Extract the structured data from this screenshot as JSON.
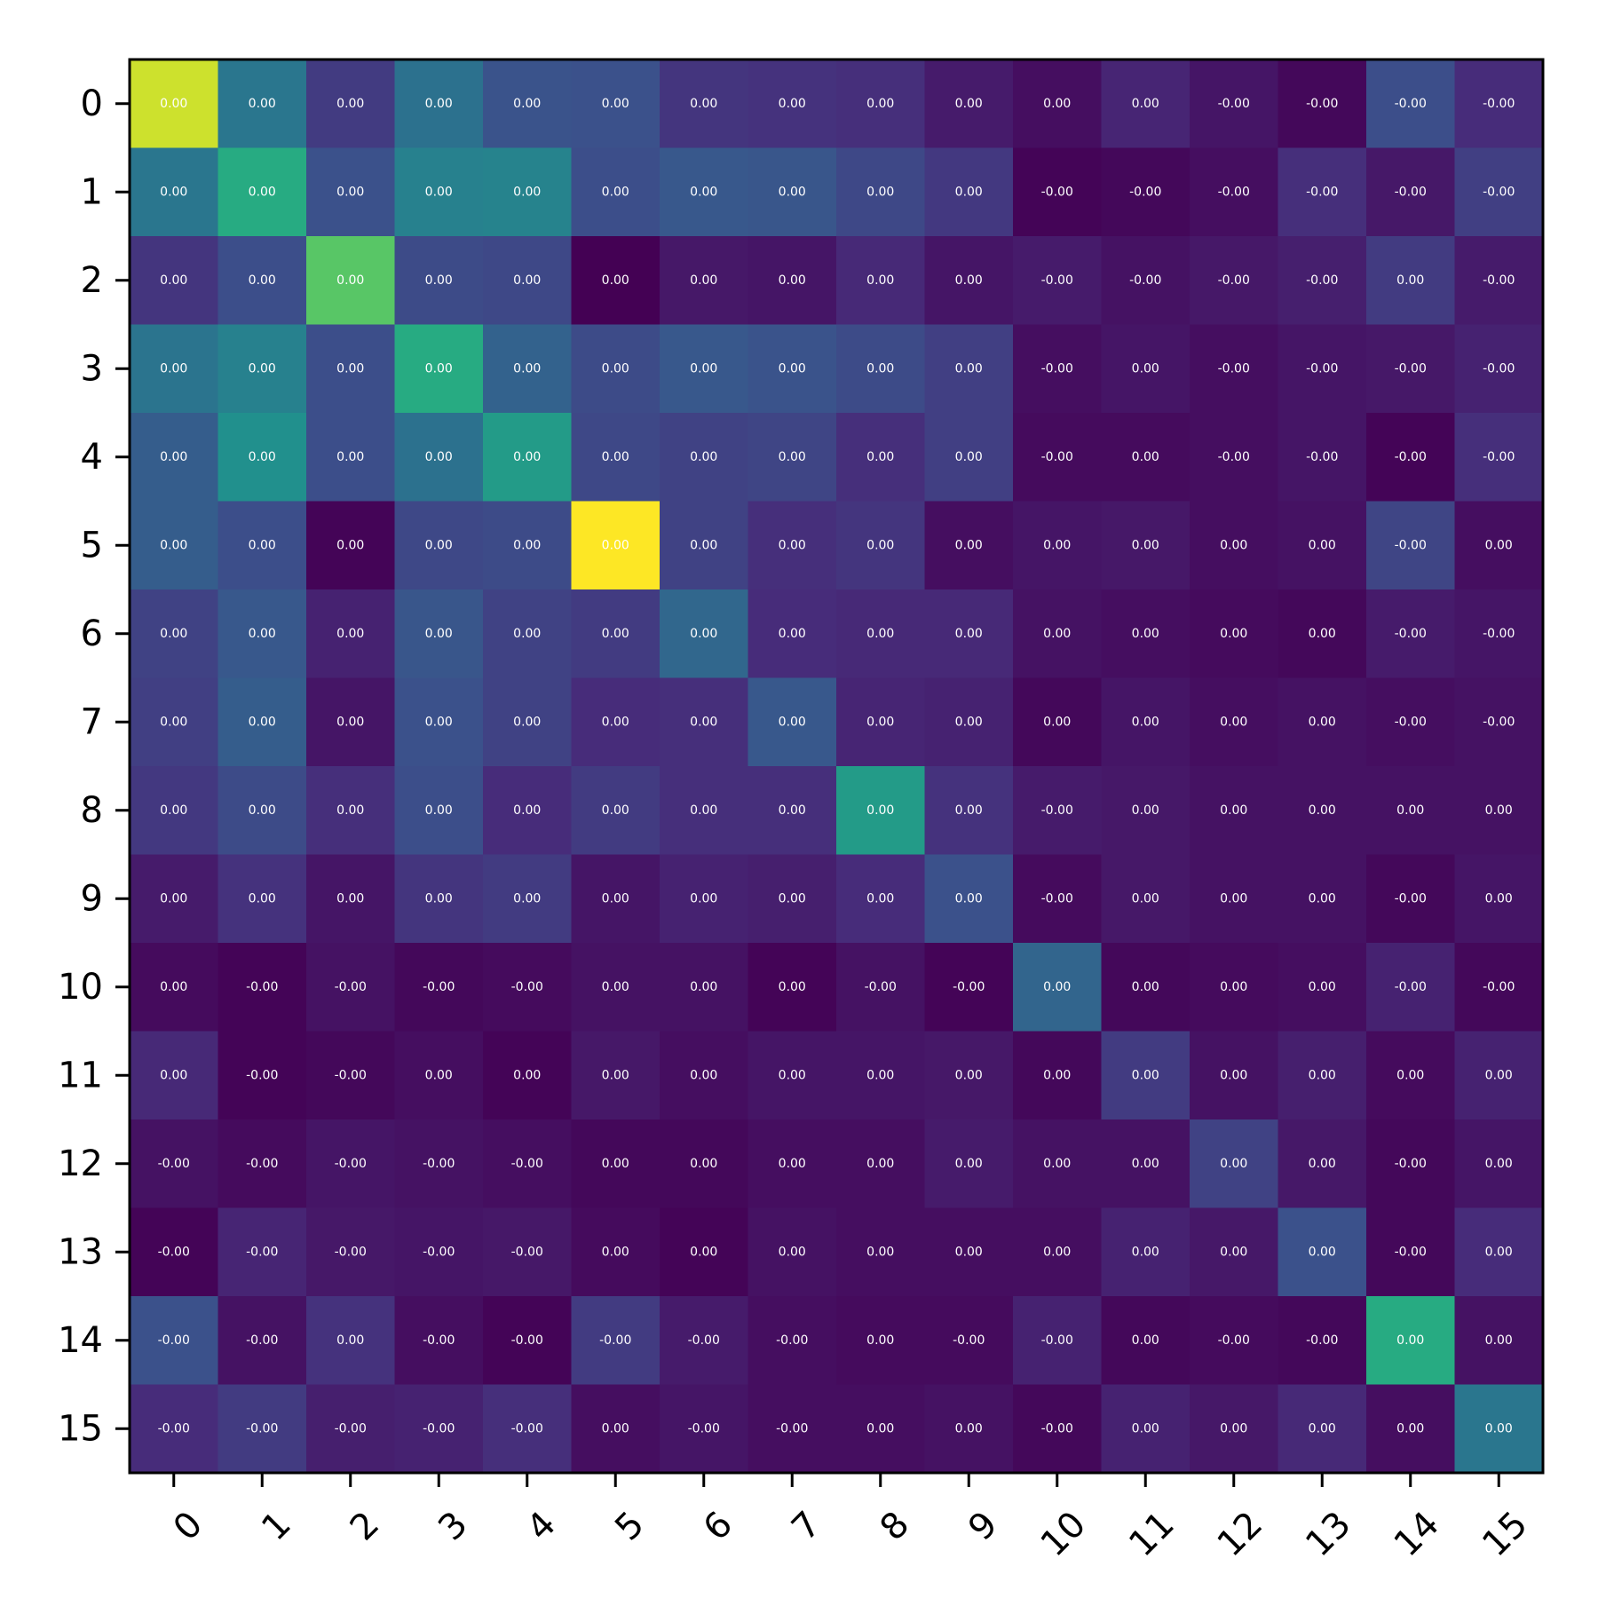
{
  "chart_data": {
    "type": "heatmap",
    "title": "",
    "xlabel": "",
    "ylabel": "",
    "x_ticks": [
      "0",
      "1",
      "2",
      "3",
      "4",
      "5",
      "6",
      "7",
      "8",
      "9",
      "10",
      "11",
      "12",
      "13",
      "14",
      "15"
    ],
    "y_ticks": [
      "0",
      "1",
      "2",
      "3",
      "4",
      "5",
      "6",
      "7",
      "8",
      "9",
      "10",
      "11",
      "12",
      "13",
      "14",
      "15"
    ],
    "colormap": "viridis",
    "grid": false,
    "color_scale_note": "relative intensity 0-1 of cell color",
    "intensity": [
      [
        0.93,
        0.4,
        0.18,
        0.38,
        0.26,
        0.25,
        0.16,
        0.15,
        0.14,
        0.08,
        0.04,
        0.11,
        0.06,
        0.02,
        0.24,
        0.13
      ],
      [
        0.4,
        0.62,
        0.25,
        0.44,
        0.45,
        0.24,
        0.28,
        0.27,
        0.22,
        0.17,
        0.01,
        0.02,
        0.04,
        0.14,
        0.07,
        0.19
      ],
      [
        0.16,
        0.24,
        0.74,
        0.23,
        0.22,
        0.0,
        0.07,
        0.06,
        0.12,
        0.06,
        0.08,
        0.05,
        0.07,
        0.09,
        0.18,
        0.08
      ],
      [
        0.39,
        0.44,
        0.24,
        0.62,
        0.32,
        0.23,
        0.28,
        0.26,
        0.23,
        0.19,
        0.04,
        0.06,
        0.04,
        0.06,
        0.07,
        0.1
      ],
      [
        0.3,
        0.5,
        0.24,
        0.38,
        0.55,
        0.22,
        0.2,
        0.21,
        0.14,
        0.19,
        0.03,
        0.03,
        0.04,
        0.06,
        0.01,
        0.14
      ],
      [
        0.3,
        0.24,
        0.01,
        0.22,
        0.23,
        1.0,
        0.2,
        0.14,
        0.16,
        0.04,
        0.06,
        0.07,
        0.04,
        0.05,
        0.21,
        0.04
      ],
      [
        0.2,
        0.28,
        0.1,
        0.27,
        0.2,
        0.18,
        0.34,
        0.13,
        0.12,
        0.12,
        0.05,
        0.04,
        0.03,
        0.02,
        0.08,
        0.06
      ],
      [
        0.19,
        0.3,
        0.06,
        0.25,
        0.2,
        0.13,
        0.14,
        0.28,
        0.11,
        0.1,
        0.02,
        0.06,
        0.04,
        0.05,
        0.04,
        0.05
      ],
      [
        0.17,
        0.23,
        0.14,
        0.24,
        0.13,
        0.18,
        0.14,
        0.14,
        0.55,
        0.15,
        0.08,
        0.07,
        0.05,
        0.05,
        0.05,
        0.05
      ],
      [
        0.08,
        0.15,
        0.06,
        0.16,
        0.18,
        0.06,
        0.1,
        0.09,
        0.13,
        0.25,
        0.03,
        0.07,
        0.05,
        0.05,
        0.02,
        0.06
      ],
      [
        0.03,
        0.01,
        0.05,
        0.02,
        0.03,
        0.05,
        0.05,
        0.01,
        0.05,
        0.01,
        0.33,
        0.02,
        0.03,
        0.04,
        0.1,
        0.02
      ],
      [
        0.12,
        0.01,
        0.02,
        0.04,
        0.01,
        0.07,
        0.04,
        0.06,
        0.06,
        0.07,
        0.02,
        0.18,
        0.05,
        0.09,
        0.03,
        0.1
      ],
      [
        0.05,
        0.03,
        0.06,
        0.05,
        0.04,
        0.02,
        0.02,
        0.04,
        0.04,
        0.08,
        0.05,
        0.05,
        0.2,
        0.07,
        0.02,
        0.06
      ],
      [
        0.01,
        0.11,
        0.07,
        0.06,
        0.07,
        0.03,
        0.01,
        0.05,
        0.04,
        0.04,
        0.04,
        0.1,
        0.07,
        0.25,
        0.02,
        0.13
      ],
      [
        0.25,
        0.05,
        0.15,
        0.04,
        0.01,
        0.18,
        0.08,
        0.04,
        0.03,
        0.03,
        0.1,
        0.02,
        0.03,
        0.02,
        0.62,
        0.05
      ],
      [
        0.13,
        0.18,
        0.09,
        0.1,
        0.14,
        0.04,
        0.06,
        0.04,
        0.04,
        0.05,
        0.02,
        0.1,
        0.07,
        0.12,
        0.04,
        0.4
      ]
    ],
    "labels": [
      [
        "0.00",
        "0.00",
        "0.00",
        "0.00",
        "0.00",
        "0.00",
        "0.00",
        "0.00",
        "0.00",
        "0.00",
        "0.00",
        "0.00",
        "-0.00",
        "-0.00",
        "-0.00",
        "-0.00"
      ],
      [
        "0.00",
        "0.00",
        "0.00",
        "0.00",
        "0.00",
        "0.00",
        "0.00",
        "0.00",
        "0.00",
        "0.00",
        "-0.00",
        "-0.00",
        "-0.00",
        "-0.00",
        "-0.00",
        "-0.00"
      ],
      [
        "0.00",
        "0.00",
        "0.00",
        "0.00",
        "0.00",
        "0.00",
        "0.00",
        "0.00",
        "0.00",
        "0.00",
        "-0.00",
        "-0.00",
        "-0.00",
        "-0.00",
        "0.00",
        "-0.00"
      ],
      [
        "0.00",
        "0.00",
        "0.00",
        "0.00",
        "0.00",
        "0.00",
        "0.00",
        "0.00",
        "0.00",
        "0.00",
        "-0.00",
        "0.00",
        "-0.00",
        "-0.00",
        "-0.00",
        "-0.00"
      ],
      [
        "0.00",
        "0.00",
        "0.00",
        "0.00",
        "0.00",
        "0.00",
        "0.00",
        "0.00",
        "0.00",
        "0.00",
        "-0.00",
        "0.00",
        "-0.00",
        "-0.00",
        "-0.00",
        "-0.00"
      ],
      [
        "0.00",
        "0.00",
        "0.00",
        "0.00",
        "0.00",
        "0.00",
        "0.00",
        "0.00",
        "0.00",
        "0.00",
        "0.00",
        "0.00",
        "0.00",
        "0.00",
        "-0.00",
        "0.00"
      ],
      [
        "0.00",
        "0.00",
        "0.00",
        "0.00",
        "0.00",
        "0.00",
        "0.00",
        "0.00",
        "0.00",
        "0.00",
        "0.00",
        "0.00",
        "0.00",
        "0.00",
        "-0.00",
        "-0.00"
      ],
      [
        "0.00",
        "0.00",
        "0.00",
        "0.00",
        "0.00",
        "0.00",
        "0.00",
        "0.00",
        "0.00",
        "0.00",
        "0.00",
        "0.00",
        "0.00",
        "0.00",
        "-0.00",
        "-0.00"
      ],
      [
        "0.00",
        "0.00",
        "0.00",
        "0.00",
        "0.00",
        "0.00",
        "0.00",
        "0.00",
        "0.00",
        "0.00",
        "-0.00",
        "0.00",
        "0.00",
        "0.00",
        "0.00",
        "0.00"
      ],
      [
        "0.00",
        "0.00",
        "0.00",
        "0.00",
        "0.00",
        "0.00",
        "0.00",
        "0.00",
        "0.00",
        "0.00",
        "-0.00",
        "0.00",
        "0.00",
        "0.00",
        "-0.00",
        "0.00"
      ],
      [
        "0.00",
        "-0.00",
        "-0.00",
        "-0.00",
        "-0.00",
        "0.00",
        "0.00",
        "0.00",
        "-0.00",
        "-0.00",
        "0.00",
        "0.00",
        "0.00",
        "0.00",
        "-0.00",
        "-0.00"
      ],
      [
        "0.00",
        "-0.00",
        "-0.00",
        "0.00",
        "0.00",
        "0.00",
        "0.00",
        "0.00",
        "0.00",
        "0.00",
        "0.00",
        "0.00",
        "0.00",
        "0.00",
        "0.00",
        "0.00"
      ],
      [
        "-0.00",
        "-0.00",
        "-0.00",
        "-0.00",
        "-0.00",
        "0.00",
        "0.00",
        "0.00",
        "0.00",
        "0.00",
        "0.00",
        "0.00",
        "0.00",
        "0.00",
        "-0.00",
        "0.00"
      ],
      [
        "-0.00",
        "-0.00",
        "-0.00",
        "-0.00",
        "-0.00",
        "0.00",
        "0.00",
        "0.00",
        "0.00",
        "0.00",
        "0.00",
        "0.00",
        "0.00",
        "0.00",
        "-0.00",
        "0.00"
      ],
      [
        "-0.00",
        "-0.00",
        "0.00",
        "-0.00",
        "-0.00",
        "-0.00",
        "-0.00",
        "-0.00",
        "0.00",
        "-0.00",
        "-0.00",
        "0.00",
        "-0.00",
        "-0.00",
        "0.00",
        "0.00"
      ],
      [
        "-0.00",
        "-0.00",
        "-0.00",
        "-0.00",
        "-0.00",
        "0.00",
        "-0.00",
        "-0.00",
        "0.00",
        "0.00",
        "-0.00",
        "0.00",
        "0.00",
        "0.00",
        "0.00",
        "0.00"
      ]
    ]
  }
}
